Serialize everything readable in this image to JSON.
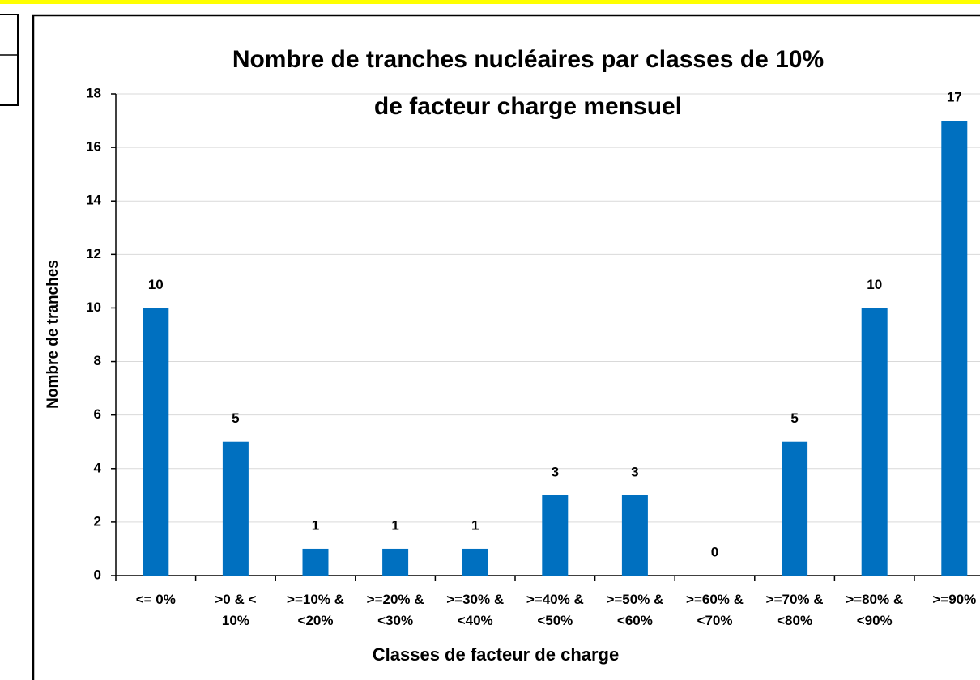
{
  "chart_data": {
    "type": "bar",
    "title": "Nombre de tranches nucléaires par classes de 10%\nde facteur charge mensuel",
    "x_label": "Classes de facteur de charge",
    "y_label": "Nombre de tranches",
    "categories": [
      "<= 0%",
      ">0 & <\n10%",
      ">=10% &\n<20%",
      ">=20% &\n<30%",
      ">=30% &\n<40%",
      ">=40% &\n<50%",
      ">=50% &\n<60%",
      ">=60% &\n<70%",
      ">=70% &\n<80%",
      ">=80% &\n<90%",
      ">=90%"
    ],
    "values": [
      10,
      5,
      1,
      1,
      1,
      3,
      3,
      0,
      5,
      10,
      17
    ],
    "color": "#0070c0",
    "ylim": [
      0,
      18
    ],
    "yticks": [
      0,
      2,
      4,
      6,
      8,
      10,
      12,
      14,
      16,
      18
    ],
    "grid": true
  }
}
